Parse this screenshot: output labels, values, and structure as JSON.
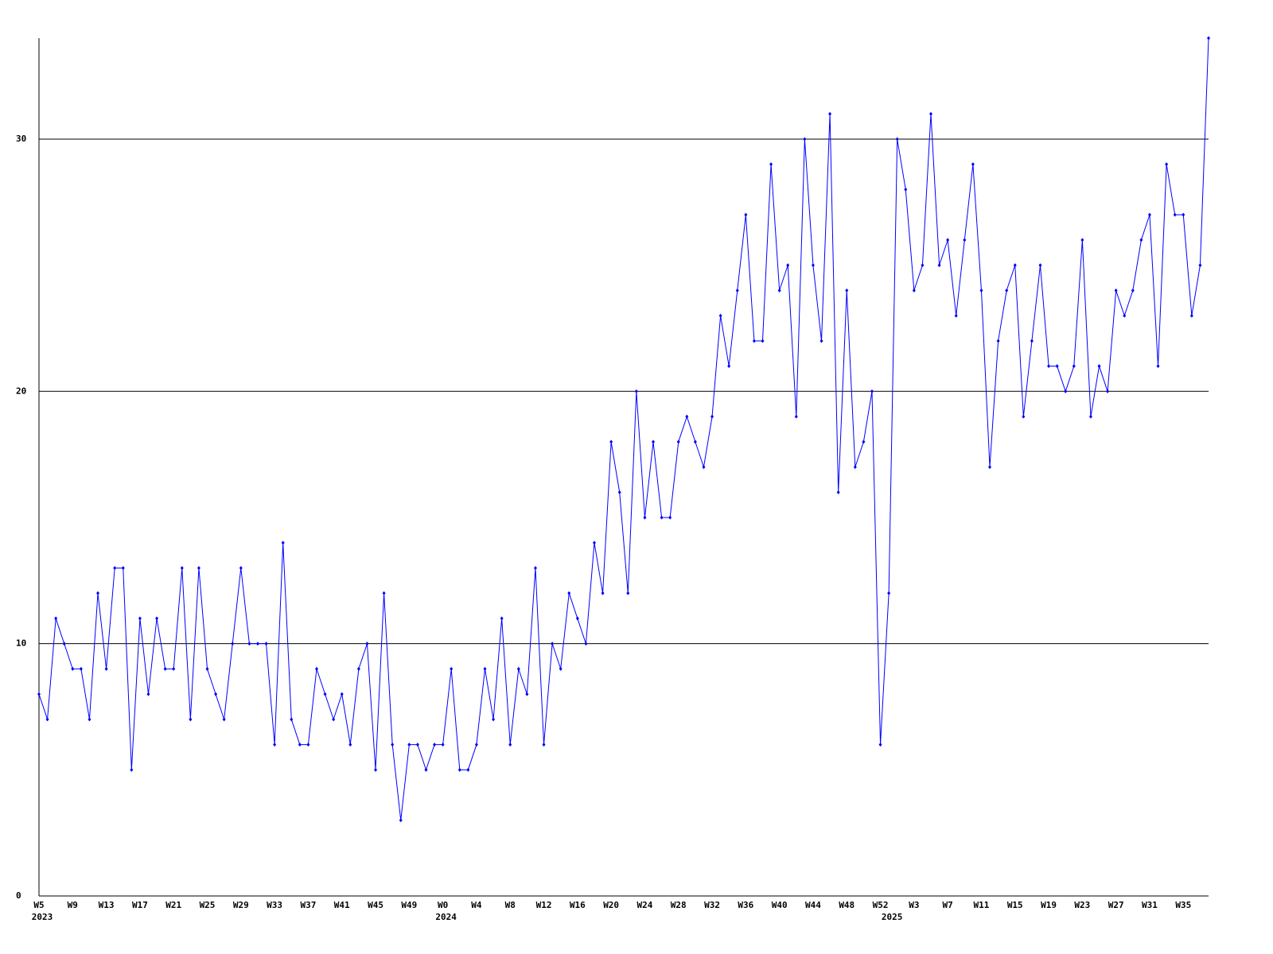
{
  "chart_data": {
    "type": "line",
    "categories": [
      "W5",
      null,
      null,
      null,
      "W9",
      null,
      null,
      null,
      "W13",
      null,
      null,
      null,
      "W17",
      null,
      null,
      null,
      "W21",
      null,
      null,
      null,
      "W25",
      null,
      null,
      null,
      "W29",
      null,
      null,
      null,
      "W33",
      null,
      null,
      null,
      "W37",
      null,
      null,
      null,
      "W41",
      null,
      null,
      null,
      "W45",
      null,
      null,
      null,
      "W49",
      null,
      null,
      null,
      "W0",
      null,
      null,
      null,
      "W4",
      null,
      null,
      null,
      "W8",
      null,
      null,
      null,
      "W12",
      null,
      null,
      null,
      "W16",
      null,
      null,
      null,
      "W20",
      null,
      null,
      null,
      "W24",
      null,
      null,
      null,
      "W28",
      null,
      null,
      null,
      "W32",
      null,
      null,
      null,
      "W36",
      null,
      null,
      null,
      "W40",
      null,
      null,
      null,
      "W44",
      null,
      null,
      null,
      "W48",
      null,
      null,
      null,
      "W52",
      null,
      null,
      null,
      "W3",
      null,
      null,
      null,
      "W7",
      null,
      null,
      null,
      "W11",
      null,
      null,
      null,
      "W15",
      null,
      null,
      null,
      "W19",
      null,
      null,
      null,
      "W23",
      null,
      null,
      null,
      "W27",
      null,
      null,
      null,
      "W31",
      null,
      null,
      null,
      "W35",
      null,
      null,
      null
    ],
    "years": [
      "2023",
      null,
      null,
      null,
      null,
      null,
      null,
      null,
      null,
      null,
      null,
      null,
      null,
      null,
      null,
      null,
      null,
      null,
      null,
      null,
      null,
      null,
      null,
      null,
      null,
      null,
      null,
      null,
      null,
      null,
      null,
      null,
      null,
      null,
      null,
      null,
      null,
      null,
      null,
      null,
      null,
      null,
      null,
      null,
      null,
      null,
      null,
      null,
      "2024",
      null,
      null,
      null,
      null,
      null,
      null,
      null,
      null,
      null,
      null,
      null,
      null,
      null,
      null,
      null,
      null,
      null,
      null,
      null,
      null,
      null,
      null,
      null,
      null,
      null,
      null,
      null,
      null,
      null,
      null,
      null,
      null,
      null,
      null,
      null,
      null,
      null,
      null,
      null,
      null,
      null,
      null,
      null,
      null,
      null,
      null,
      null,
      null,
      null,
      null,
      null,
      null,
      "2025",
      null,
      null,
      null,
      null,
      null,
      null,
      null,
      null,
      null,
      null,
      null,
      null,
      null,
      null,
      null,
      null,
      null,
      null,
      null,
      null,
      null,
      null,
      null,
      null,
      null,
      null,
      null,
      null,
      null,
      null,
      null,
      null,
      null,
      null,
      null,
      null,
      null
    ],
    "series": [
      {
        "color": "#0000ff",
        "values": [
          8,
          7,
          11,
          10,
          9,
          9,
          7,
          12,
          9,
          13,
          13,
          5,
          11,
          8,
          11,
          9,
          9,
          13,
          7,
          13,
          9,
          8,
          7,
          10,
          13,
          10,
          10,
          10,
          6,
          14,
          7,
          6,
          6,
          9,
          8,
          7,
          8,
          6,
          9,
          10,
          5,
          12,
          6,
          3,
          6,
          6,
          5,
          6,
          6,
          9,
          5,
          5,
          6,
          9,
          7,
          11,
          6,
          9,
          8,
          13,
          6,
          10,
          9,
          12,
          11,
          10,
          14,
          12,
          18,
          16,
          12,
          20,
          15,
          18,
          15,
          15,
          18,
          19,
          18,
          17,
          19,
          23,
          21,
          24,
          27,
          22,
          22,
          29,
          24,
          25,
          19,
          30,
          25,
          22,
          31,
          16,
          24,
          17,
          18,
          20,
          6,
          12,
          30,
          28,
          24,
          25,
          31,
          25,
          26,
          23,
          26,
          29,
          24,
          17,
          22,
          24,
          25,
          19,
          22,
          25,
          21,
          21,
          20,
          21,
          26,
          19,
          21,
          20,
          24,
          23,
          24,
          26,
          27,
          21,
          29,
          27,
          27,
          23,
          25,
          34
        ]
      }
    ],
    "ylim": [
      0,
      34
    ],
    "yticks": [
      0,
      10,
      20,
      30
    ],
    "grid": true
  }
}
